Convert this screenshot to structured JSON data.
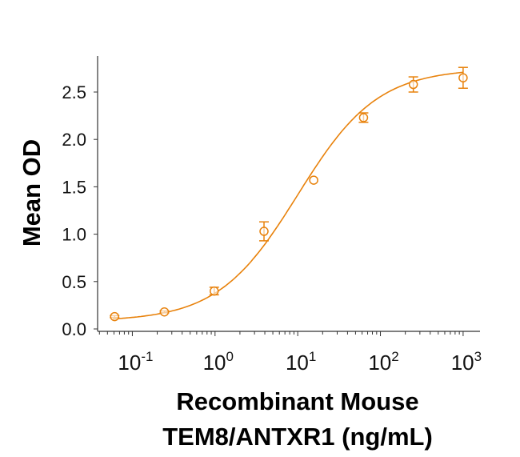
{
  "chart_data": {
    "type": "scatter",
    "title": "",
    "xlabel": [
      "Recombinant Mouse",
      "TEM8/ANTXR1 (ng/mL)"
    ],
    "ylabel": "Mean OD",
    "xscale": "log",
    "xlim": [
      0.038,
      1600
    ],
    "ylim": [
      0,
      2.88
    ],
    "color": "#E8820C",
    "yticks": [
      0,
      0.5,
      1.0,
      1.5,
      2.0,
      2.5
    ],
    "ytick_labels": [
      "0.0",
      "0.5",
      "1.0",
      "1.5",
      "2.0",
      "2.5"
    ],
    "xticks": [
      0.1,
      1,
      10,
      100,
      1000
    ],
    "xtick_labels": [
      {
        "base": "10",
        "exp": "-1"
      },
      {
        "base": "10",
        "exp": "0"
      },
      {
        "base": "10",
        "exp": "1"
      },
      {
        "base": "10",
        "exp": "2"
      },
      {
        "base": "10",
        "exp": "3"
      }
    ],
    "points": [
      {
        "x": 0.061,
        "y": 0.13,
        "err": 0.01
      },
      {
        "x": 0.244,
        "y": 0.18,
        "err": 0.01
      },
      {
        "x": 0.977,
        "y": 0.4,
        "err": 0.04
      },
      {
        "x": 3.91,
        "y": 1.03,
        "err": 0.1
      },
      {
        "x": 15.6,
        "y": 1.57,
        "err": 0.0
      },
      {
        "x": 62.5,
        "y": 2.23,
        "err": 0.05
      },
      {
        "x": 250,
        "y": 2.58,
        "err": 0.08
      },
      {
        "x": 1000,
        "y": 2.65,
        "err": 0.11
      }
    ],
    "fit": {
      "model": "4PL",
      "bottom": 0.08,
      "top": 2.75,
      "ec50": 10,
      "hill": 0.9
    }
  }
}
